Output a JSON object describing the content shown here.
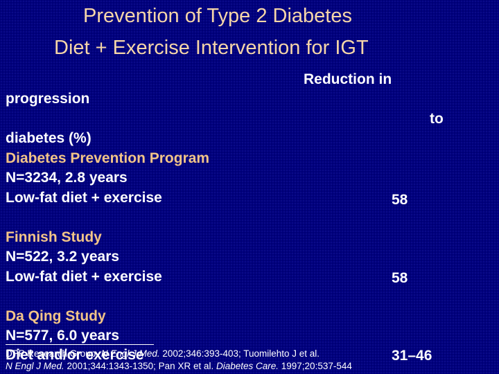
{
  "title": {
    "line1": "Prevention of Type 2 Diabetes",
    "line2": "Diet + Exercise Intervention for IGT"
  },
  "header": {
    "reduction_in": "Reduction in",
    "progression": "progression",
    "to": "to",
    "diabetes_pct": "diabetes (%)"
  },
  "studies": [
    {
      "name": "Diabetes Prevention Program",
      "n": "N=3234, 2.8 years",
      "intervention": "Low-fat diet + exercise",
      "value": "58"
    },
    {
      "name": "Finnish Study",
      "n": "N=522, 3.2 years",
      "intervention": "Low-fat diet + exercise",
      "value": "58"
    },
    {
      "name": "Da Qing Study",
      "n": "N=577, 6.0 years",
      "intervention": "Diet and/or exercise",
      "value": "31–46"
    }
  ],
  "footnote": {
    "l1_a": "DPP Research Group. ",
    "l1_b": "N Engl J Med.",
    "l1_c": " 2002;346:393-403; Tuomilehto J et al.",
    "l2_a": "N Engl J Med.",
    "l2_b": " 2001;344:1343-1350; Pan XR et al. ",
    "l2_c": "Diabetes Care.",
    "l2_d": " 1997;20:537-544"
  }
}
